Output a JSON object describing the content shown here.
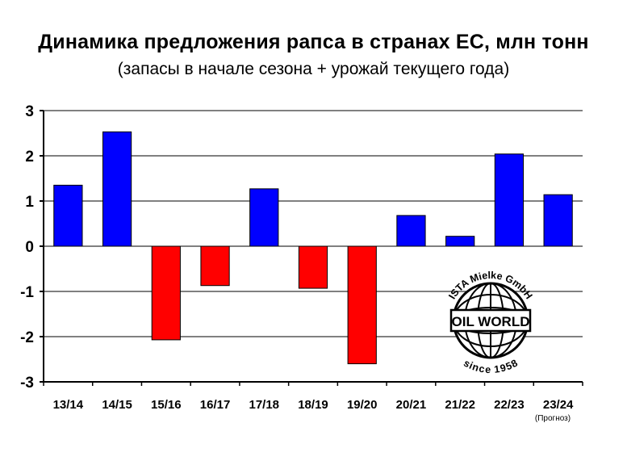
{
  "chart_data": {
    "type": "bar",
    "title": "Динамика предложения рапса в странах ЕС, млн тонн",
    "subtitle": "(запасы в начале сезона + урожай текущего года)",
    "categories": [
      "13/14",
      "14/15",
      "15/16",
      "16/17",
      "17/18",
      "18/19",
      "19/20",
      "20/21",
      "21/22",
      "22/23",
      "23/24"
    ],
    "values": [
      1.35,
      2.53,
      -2.07,
      -0.87,
      1.27,
      -0.93,
      -2.6,
      0.68,
      0.22,
      2.04,
      1.14
    ],
    "ylim": [
      -3,
      3
    ],
    "yticks": [
      "3",
      "2",
      "1",
      "0",
      "-1",
      "-2",
      "-3"
    ],
    "grid": true,
    "colors": {
      "positive": "#0000ff",
      "negative": "#ff0000"
    },
    "annotations": {
      "forecast_note": "(Прогноз)"
    }
  },
  "logo": {
    "top_text": "ISTA Mielke GmbH",
    "center_text": "OIL WORLD",
    "bottom_text": "since 1958"
  }
}
